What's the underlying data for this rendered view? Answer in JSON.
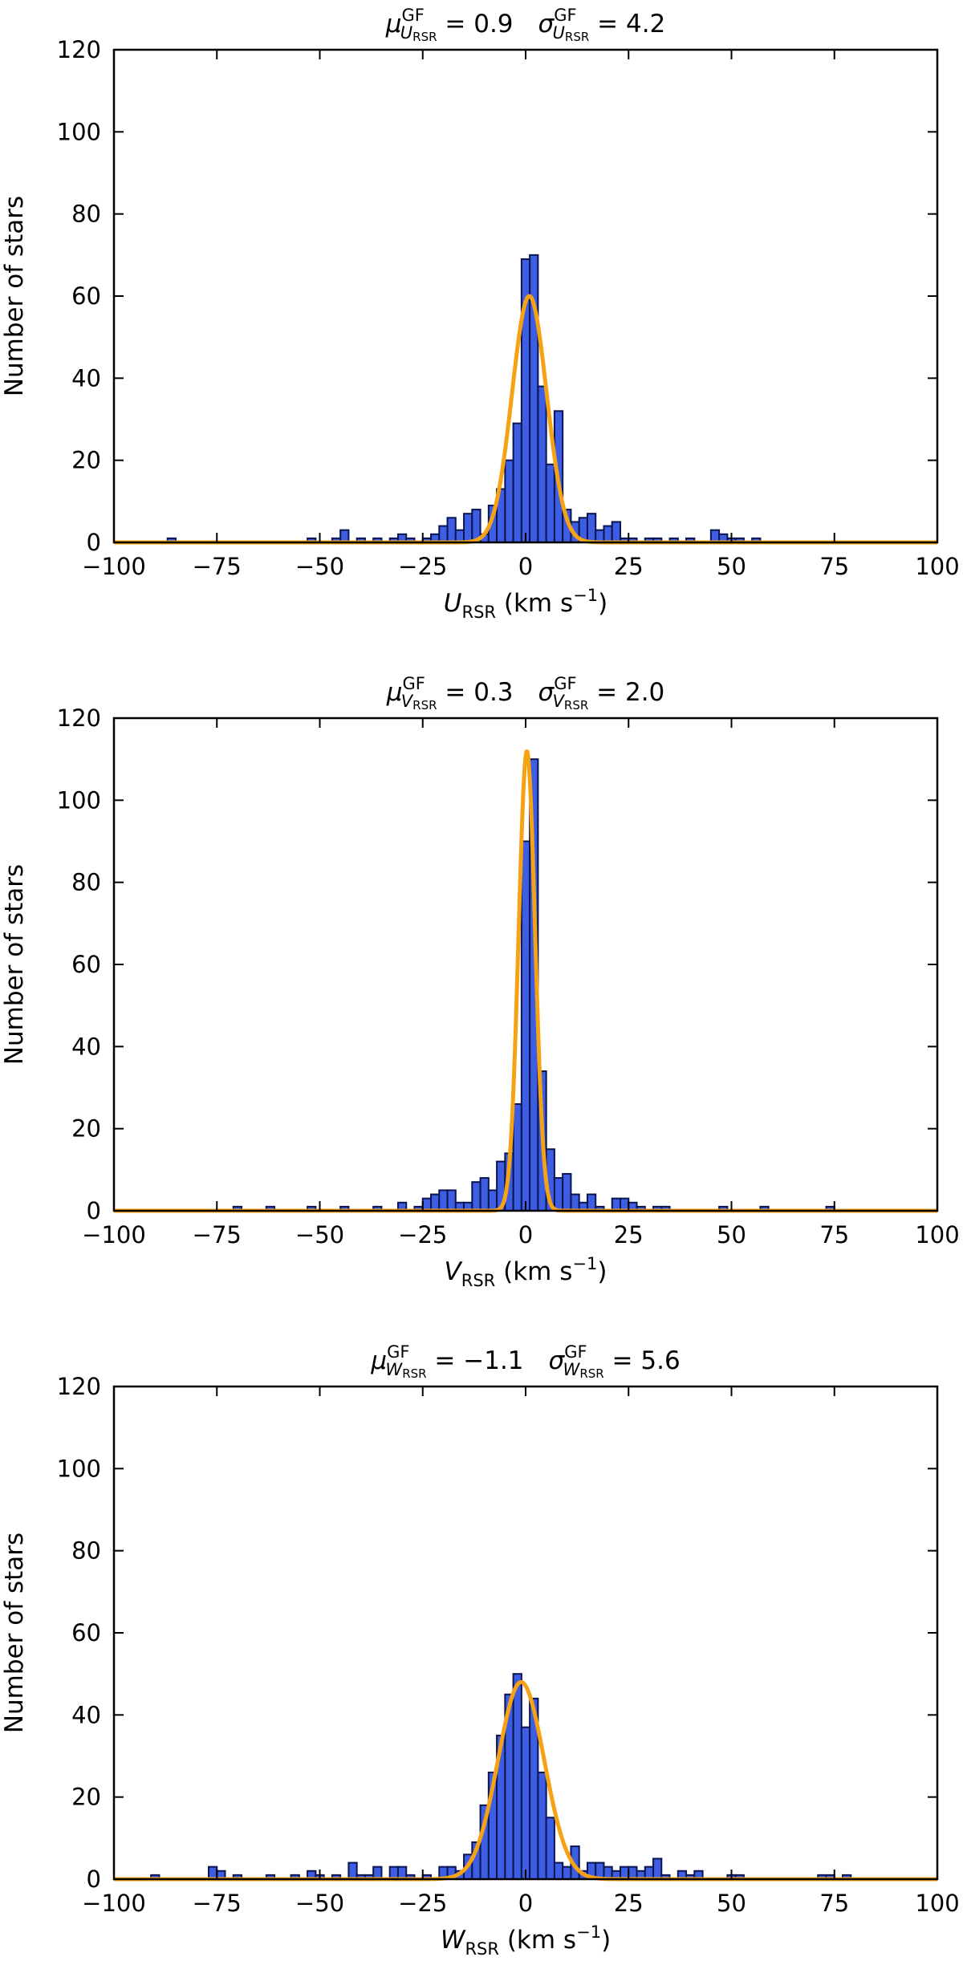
{
  "colors": {
    "bar_fill": "#3d5ee3",
    "bar_edge": "#0a1550",
    "fit_line": "#f5a314",
    "axes": "#000000"
  },
  "chart_data": [
    {
      "type": "bar",
      "title": {
        "mu_symbol": "μ",
        "mu_sup": "GF",
        "mu_sub_var": "U",
        "mu_sub_rsr": "RSR",
        "mu_value": " = 0.9",
        "sigma_symbol": "σ",
        "sigma_sup": "GF",
        "sigma_sub_var": "U",
        "sigma_sub_rsr": "RSR",
        "sigma_value": " = 4.2"
      },
      "xlabel": {
        "var": "U",
        "sub": "RSR",
        "unit": " (km s",
        "exp": "−1",
        "close": ")"
      },
      "ylabel": "Number of stars",
      "xlim": [
        -100,
        100
      ],
      "ylim": [
        0,
        120
      ],
      "xticks": [
        -100,
        -75,
        -50,
        -25,
        0,
        25,
        50,
        75,
        100
      ],
      "xtick_labels": [
        "−100",
        "−75",
        "−50",
        "−25",
        "0",
        "25",
        "50",
        "75",
        "100"
      ],
      "yticks": [
        0,
        20,
        40,
        60,
        80,
        100,
        120
      ],
      "ytick_labels": [
        "0",
        "20",
        "40",
        "60",
        "80",
        "100",
        "120"
      ],
      "bin_width": 2,
      "bins": [
        {
          "x": -86,
          "count": 1
        },
        {
          "x": -52,
          "count": 1
        },
        {
          "x": -46,
          "count": 1
        },
        {
          "x": -44,
          "count": 3
        },
        {
          "x": -40,
          "count": 1
        },
        {
          "x": -36,
          "count": 1
        },
        {
          "x": -32,
          "count": 1
        },
        {
          "x": -30,
          "count": 2
        },
        {
          "x": -28,
          "count": 1
        },
        {
          "x": -24,
          "count": 1
        },
        {
          "x": -22,
          "count": 2
        },
        {
          "x": -20,
          "count": 4
        },
        {
          "x": -18,
          "count": 6
        },
        {
          "x": -16,
          "count": 3
        },
        {
          "x": -14,
          "count": 7
        },
        {
          "x": -12,
          "count": 8
        },
        {
          "x": -10,
          "count": 2
        },
        {
          "x": -8,
          "count": 9
        },
        {
          "x": -6,
          "count": 13
        },
        {
          "x": -4,
          "count": 20
        },
        {
          "x": -2,
          "count": 29
        },
        {
          "x": 0,
          "count": 69
        },
        {
          "x": 2,
          "count": 70
        },
        {
          "x": 4,
          "count": 38
        },
        {
          "x": 6,
          "count": 19
        },
        {
          "x": 8,
          "count": 32
        },
        {
          "x": 10,
          "count": 8
        },
        {
          "x": 12,
          "count": 5
        },
        {
          "x": 14,
          "count": 6
        },
        {
          "x": 16,
          "count": 7
        },
        {
          "x": 18,
          "count": 3
        },
        {
          "x": 20,
          "count": 4
        },
        {
          "x": 22,
          "count": 5
        },
        {
          "x": 24,
          "count": 1
        },
        {
          "x": 26,
          "count": 1
        },
        {
          "x": 30,
          "count": 1
        },
        {
          "x": 32,
          "count": 1
        },
        {
          "x": 36,
          "count": 1
        },
        {
          "x": 40,
          "count": 1
        },
        {
          "x": 46,
          "count": 3
        },
        {
          "x": 48,
          "count": 2
        },
        {
          "x": 50,
          "count": 1
        },
        {
          "x": 52,
          "count": 1
        },
        {
          "x": 56,
          "count": 1
        }
      ],
      "fit": {
        "amplitude": 60,
        "mu": 0.9,
        "sigma": 4.2
      }
    },
    {
      "type": "bar",
      "title": {
        "mu_symbol": "μ",
        "mu_sup": "GF",
        "mu_sub_var": "V",
        "mu_sub_rsr": "RSR",
        "mu_value": " = 0.3",
        "sigma_symbol": "σ",
        "sigma_sup": "GF",
        "sigma_sub_var": "V",
        "sigma_sub_rsr": "RSR",
        "sigma_value": " = 2.0"
      },
      "xlabel": {
        "var": "V",
        "sub": "RSR",
        "unit": " (km s",
        "exp": "−1",
        "close": ")"
      },
      "ylabel": "Number of stars",
      "xlim": [
        -100,
        100
      ],
      "ylim": [
        0,
        120
      ],
      "xticks": [
        -100,
        -75,
        -50,
        -25,
        0,
        25,
        50,
        75,
        100
      ],
      "xtick_labels": [
        "−100",
        "−75",
        "−50",
        "−25",
        "0",
        "25",
        "50",
        "75",
        "100"
      ],
      "yticks": [
        0,
        20,
        40,
        60,
        80,
        100,
        120
      ],
      "ytick_labels": [
        "0",
        "20",
        "40",
        "60",
        "80",
        "100",
        "120"
      ],
      "bin_width": 2,
      "bins": [
        {
          "x": -70,
          "count": 1
        },
        {
          "x": -62,
          "count": 1
        },
        {
          "x": -52,
          "count": 1
        },
        {
          "x": -44,
          "count": 1
        },
        {
          "x": -36,
          "count": 1
        },
        {
          "x": -30,
          "count": 2
        },
        {
          "x": -26,
          "count": 1
        },
        {
          "x": -24,
          "count": 3
        },
        {
          "x": -22,
          "count": 4
        },
        {
          "x": -20,
          "count": 5
        },
        {
          "x": -18,
          "count": 5
        },
        {
          "x": -16,
          "count": 2
        },
        {
          "x": -14,
          "count": 2
        },
        {
          "x": -12,
          "count": 7
        },
        {
          "x": -10,
          "count": 8
        },
        {
          "x": -8,
          "count": 5
        },
        {
          "x": -6,
          "count": 12
        },
        {
          "x": -4,
          "count": 14
        },
        {
          "x": -2,
          "count": 26
        },
        {
          "x": 0,
          "count": 90
        },
        {
          "x": 2,
          "count": 110
        },
        {
          "x": 4,
          "count": 34
        },
        {
          "x": 6,
          "count": 15
        },
        {
          "x": 8,
          "count": 8
        },
        {
          "x": 10,
          "count": 9
        },
        {
          "x": 12,
          "count": 4
        },
        {
          "x": 14,
          "count": 2
        },
        {
          "x": 16,
          "count": 4
        },
        {
          "x": 18,
          "count": 1
        },
        {
          "x": 22,
          "count": 3
        },
        {
          "x": 24,
          "count": 3
        },
        {
          "x": 26,
          "count": 2
        },
        {
          "x": 28,
          "count": 1
        },
        {
          "x": 32,
          "count": 1
        },
        {
          "x": 34,
          "count": 1
        },
        {
          "x": 48,
          "count": 1
        },
        {
          "x": 58,
          "count": 1
        },
        {
          "x": 74,
          "count": 1
        }
      ],
      "fit": {
        "amplitude": 112,
        "mu": 0.3,
        "sigma": 2.0
      }
    },
    {
      "type": "bar",
      "title": {
        "mu_symbol": "μ",
        "mu_sup": "GF",
        "mu_sub_var": "W",
        "mu_sub_rsr": "RSR",
        "mu_value": " = −1.1",
        "sigma_symbol": "σ",
        "sigma_sup": "GF",
        "sigma_sub_var": "W",
        "sigma_sub_rsr": "RSR",
        "sigma_value": " = 5.6"
      },
      "xlabel": {
        "var": "W",
        "sub": "RSR",
        "unit": " (km s",
        "exp": "−1",
        "close": ")"
      },
      "ylabel": "Number of stars",
      "xlim": [
        -100,
        100
      ],
      "ylim": [
        0,
        120
      ],
      "xticks": [
        -100,
        -75,
        -50,
        -25,
        0,
        25,
        50,
        75,
        100
      ],
      "xtick_labels": [
        "−100",
        "−75",
        "−50",
        "−25",
        "0",
        "25",
        "50",
        "75",
        "100"
      ],
      "yticks": [
        0,
        20,
        40,
        60,
        80,
        100,
        120
      ],
      "ytick_labels": [
        "0",
        "20",
        "40",
        "60",
        "80",
        "100",
        "120"
      ],
      "bin_width": 2,
      "bins": [
        {
          "x": -90,
          "count": 1
        },
        {
          "x": -76,
          "count": 3
        },
        {
          "x": -74,
          "count": 2
        },
        {
          "x": -70,
          "count": 1
        },
        {
          "x": -62,
          "count": 1
        },
        {
          "x": -56,
          "count": 1
        },
        {
          "x": -52,
          "count": 2
        },
        {
          "x": -50,
          "count": 1
        },
        {
          "x": -46,
          "count": 1
        },
        {
          "x": -42,
          "count": 4
        },
        {
          "x": -40,
          "count": 1
        },
        {
          "x": -38,
          "count": 1
        },
        {
          "x": -36,
          "count": 3
        },
        {
          "x": -32,
          "count": 3
        },
        {
          "x": -30,
          "count": 3
        },
        {
          "x": -28,
          "count": 1
        },
        {
          "x": -24,
          "count": 1
        },
        {
          "x": -20,
          "count": 3
        },
        {
          "x": -18,
          "count": 3
        },
        {
          "x": -16,
          "count": 2
        },
        {
          "x": -14,
          "count": 6
        },
        {
          "x": -12,
          "count": 9
        },
        {
          "x": -10,
          "count": 18
        },
        {
          "x": -8,
          "count": 26
        },
        {
          "x": -6,
          "count": 35
        },
        {
          "x": -4,
          "count": 45
        },
        {
          "x": -2,
          "count": 50
        },
        {
          "x": 0,
          "count": 37
        },
        {
          "x": 2,
          "count": 44
        },
        {
          "x": 4,
          "count": 26
        },
        {
          "x": 6,
          "count": 15
        },
        {
          "x": 8,
          "count": 4
        },
        {
          "x": 10,
          "count": 3
        },
        {
          "x": 12,
          "count": 8
        },
        {
          "x": 14,
          "count": 2
        },
        {
          "x": 16,
          "count": 4
        },
        {
          "x": 18,
          "count": 4
        },
        {
          "x": 20,
          "count": 3
        },
        {
          "x": 22,
          "count": 2
        },
        {
          "x": 24,
          "count": 3
        },
        {
          "x": 26,
          "count": 3
        },
        {
          "x": 28,
          "count": 2
        },
        {
          "x": 30,
          "count": 3
        },
        {
          "x": 32,
          "count": 5
        },
        {
          "x": 34,
          "count": 1
        },
        {
          "x": 38,
          "count": 2
        },
        {
          "x": 40,
          "count": 1
        },
        {
          "x": 42,
          "count": 2
        },
        {
          "x": 50,
          "count": 1
        },
        {
          "x": 52,
          "count": 1
        },
        {
          "x": 72,
          "count": 1
        },
        {
          "x": 74,
          "count": 1
        },
        {
          "x": 78,
          "count": 1
        }
      ],
      "fit": {
        "amplitude": 48,
        "mu": -1.1,
        "sigma": 5.6
      }
    }
  ]
}
